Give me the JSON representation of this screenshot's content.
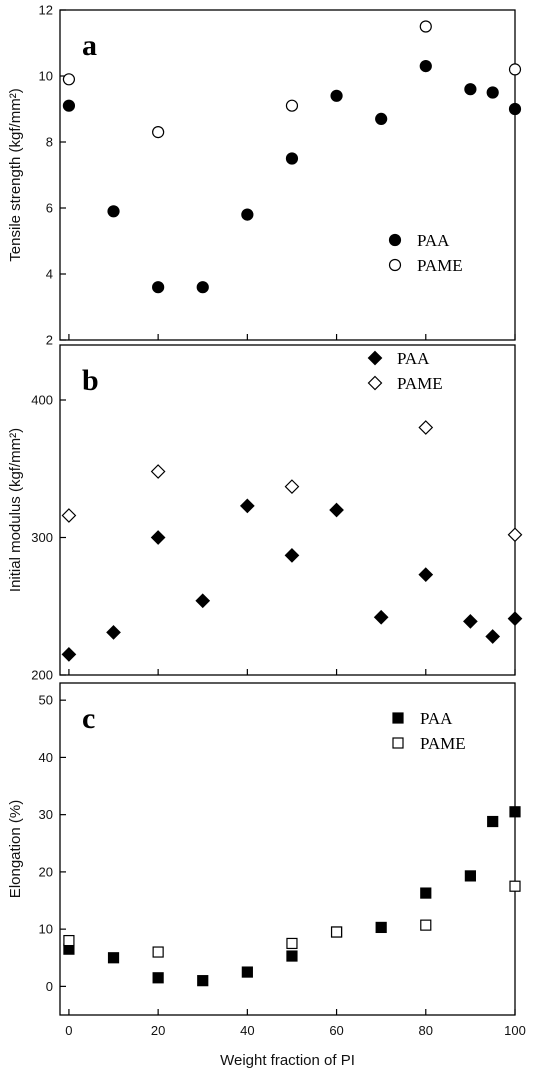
{
  "chart_data": [
    {
      "type": "scatter",
      "panel_label": "a",
      "ylabel": "Tensile strength (kgf/mm²)",
      "xlabel": "",
      "xlim": [
        -2,
        100
      ],
      "ylim": [
        2,
        12
      ],
      "yticks": [
        2,
        4,
        6,
        8,
        10,
        12
      ],
      "xticks": [
        0,
        20,
        40,
        60,
        80,
        100
      ],
      "show_xtick_labels": false,
      "marker": "circle",
      "legend": "middle-right",
      "series": [
        {
          "name": "PAA",
          "filled": true,
          "points": [
            [
              0,
              9.1
            ],
            [
              10,
              5.9
            ],
            [
              20,
              3.6
            ],
            [
              30,
              3.6
            ],
            [
              40,
              5.8
            ],
            [
              50,
              7.5
            ],
            [
              60,
              9.4
            ],
            [
              70,
              8.7
            ],
            [
              80,
              10.3
            ],
            [
              90,
              9.6
            ],
            [
              95,
              9.5
            ],
            [
              100,
              9.0
            ]
          ]
        },
        {
          "name": "PAME",
          "filled": false,
          "points": [
            [
              0,
              9.9
            ],
            [
              20,
              8.3
            ],
            [
              50,
              9.1
            ],
            [
              80,
              11.5
            ],
            [
              100,
              10.2
            ]
          ]
        }
      ]
    },
    {
      "type": "scatter",
      "panel_label": "b",
      "ylabel": "Initial modulus (kgf/mm²)",
      "xlabel": "",
      "xlim": [
        -2,
        100
      ],
      "ylim": [
        200,
        440
      ],
      "yticks": [
        200,
        300,
        400
      ],
      "xticks": [
        0,
        20,
        40,
        60,
        80,
        100
      ],
      "show_xtick_labels": false,
      "marker": "diamond",
      "legend": "top-right",
      "series": [
        {
          "name": "PAA",
          "filled": true,
          "points": [
            [
              0,
              215
            ],
            [
              10,
              231
            ],
            [
              20,
              300
            ],
            [
              30,
              254
            ],
            [
              40,
              323
            ],
            [
              50,
              287
            ],
            [
              60,
              320
            ],
            [
              70,
              242
            ],
            [
              80,
              273
            ],
            [
              90,
              239
            ],
            [
              95,
              228
            ],
            [
              100,
              241
            ]
          ]
        },
        {
          "name": "PAME",
          "filled": false,
          "points": [
            [
              0,
              316
            ],
            [
              20,
              348
            ],
            [
              50,
              337
            ],
            [
              80,
              380
            ],
            [
              100,
              302
            ]
          ]
        }
      ]
    },
    {
      "type": "scatter",
      "panel_label": "c",
      "ylabel": "Elongation (%)",
      "xlabel": "Weight fraction of PI",
      "xlim": [
        -2,
        100
      ],
      "ylim": [
        -5,
        53
      ],
      "yticks": [
        0,
        10,
        20,
        30,
        40,
        50
      ],
      "xticks": [
        0,
        20,
        40,
        60,
        80,
        100
      ],
      "show_xtick_labels": true,
      "marker": "square",
      "legend": "top-right",
      "series": [
        {
          "name": "PAA",
          "filled": true,
          "points": [
            [
              0,
              6.5
            ],
            [
              10,
              5
            ],
            [
              20,
              1.5
            ],
            [
              30,
              1
            ],
            [
              40,
              2.5
            ],
            [
              50,
              5.3
            ],
            [
              60,
              9.5
            ],
            [
              70,
              10.3
            ],
            [
              80,
              16.3
            ],
            [
              90,
              19.3
            ],
            [
              95,
              28.8
            ],
            [
              100,
              30.5
            ]
          ]
        },
        {
          "name": "PAME",
          "filled": false,
          "points": [
            [
              0,
              8
            ],
            [
              20,
              6
            ],
            [
              50,
              7.5
            ],
            [
              60,
              9.5
            ],
            [
              80,
              10.7
            ],
            [
              100,
              17.5
            ]
          ]
        }
      ]
    }
  ]
}
